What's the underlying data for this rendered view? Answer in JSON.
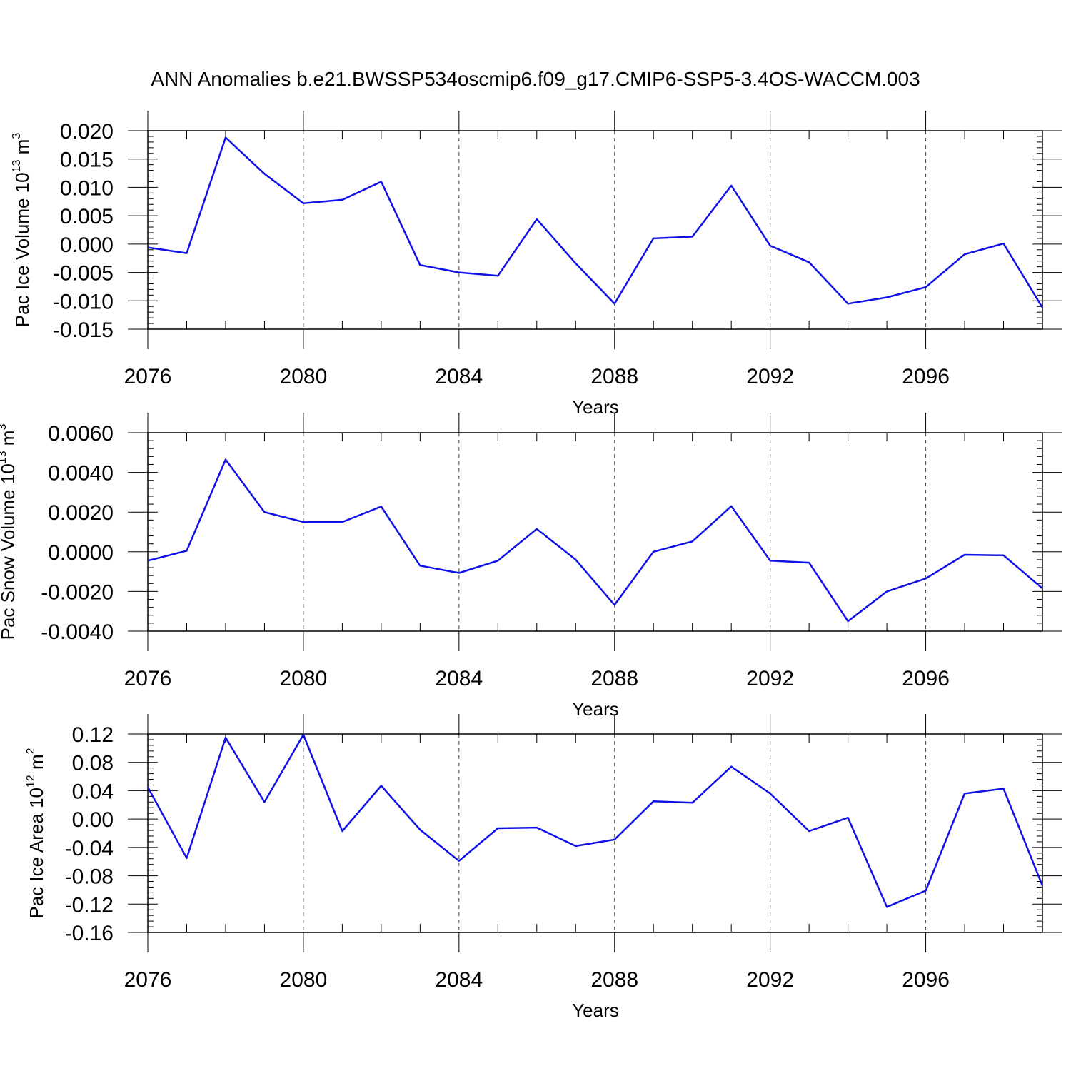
{
  "title": "ANN Anomalies b.e21.BWSSP534oscmip6.f09_g17.CMIP6-SSP5-3.4OS-WACCM.003",
  "chart_data": [
    {
      "type": "line",
      "ylabel": {
        "main": "Pac Ice Volume 10",
        "exp": "13",
        "unit": " m",
        "unit_exp": "3"
      },
      "xlabel": "Years",
      "xlim": [
        2076,
        2099
      ],
      "ylim": [
        -0.015,
        0.02
      ],
      "yticks": [
        -0.015,
        -0.01,
        -0.005,
        0.0,
        0.005,
        0.01,
        0.015,
        0.02
      ],
      "ytick_labels": [
        "-0.015",
        "-0.010",
        "-0.005",
        "0.000",
        "0.005",
        "0.010",
        "0.015",
        "0.020"
      ],
      "xticks": [
        2076,
        2080,
        2084,
        2088,
        2092,
        2096
      ],
      "xtick_labels": [
        "2076",
        "2080",
        "2084",
        "2088",
        "2092",
        "2096"
      ],
      "grid": "dashed vertical at major x ticks",
      "line_color": "#1010e8",
      "x": [
        2076,
        2077,
        2078,
        2079,
        2080,
        2081,
        2082,
        2083,
        2084,
        2085,
        2086,
        2087,
        2088,
        2089,
        2090,
        2091,
        2092,
        2093,
        2094,
        2095,
        2096,
        2097,
        2098,
        2099
      ],
      "values": [
        -0.0006,
        -0.0016,
        0.0188,
        0.0124,
        0.0072,
        0.0078,
        0.011,
        -0.0037,
        -0.005,
        -0.0056,
        0.0044,
        -0.0034,
        -0.0105,
        0.001,
        0.0013,
        0.0103,
        -0.0003,
        -0.0032,
        -0.0105,
        -0.0094,
        -0.0076,
        -0.0018,
        0.0001,
        -0.0112
      ]
    },
    {
      "type": "line",
      "ylabel": {
        "main": "Pac Snow Volume 10",
        "exp": "13",
        "unit": " m",
        "unit_exp": "3"
      },
      "xlabel": "Years",
      "xlim": [
        2076,
        2099
      ],
      "ylim": [
        -0.004,
        0.006
      ],
      "yticks": [
        -0.004,
        -0.002,
        0.0,
        0.002,
        0.004,
        0.006
      ],
      "ytick_labels": [
        "-0.0040",
        "-0.0020",
        "0.0000",
        "0.0020",
        "0.0040",
        "0.0060"
      ],
      "xticks": [
        2076,
        2080,
        2084,
        2088,
        2092,
        2096
      ],
      "xtick_labels": [
        "2076",
        "2080",
        "2084",
        "2088",
        "2092",
        "2096"
      ],
      "grid": "dashed vertical at major x ticks",
      "line_color": "#1010e8",
      "x": [
        2076,
        2077,
        2078,
        2079,
        2080,
        2081,
        2082,
        2083,
        2084,
        2085,
        2086,
        2087,
        2088,
        2089,
        2090,
        2091,
        2092,
        2093,
        2094,
        2095,
        2096,
        2097,
        2098,
        2099
      ],
      "values": [
        -0.00045,
        5e-05,
        0.00465,
        0.002,
        0.0015,
        0.0015,
        0.00228,
        -0.0007,
        -0.00107,
        -0.00045,
        0.00115,
        -0.0004,
        -0.00268,
        0.0,
        0.00052,
        0.0023,
        -0.00045,
        -0.00055,
        -0.0035,
        -0.002,
        -0.00135,
        -0.00015,
        -0.00018,
        -0.00185
      ]
    },
    {
      "type": "line",
      "ylabel": {
        "main": "Pac Ice Area 10",
        "exp": "12",
        "unit": " m",
        "unit_exp": "2"
      },
      "xlabel": "Years",
      "xlim": [
        2076,
        2099
      ],
      "ylim": [
        -0.16,
        0.12
      ],
      "yticks": [
        -0.16,
        -0.12,
        -0.08,
        -0.04,
        0.0,
        0.04,
        0.08,
        0.12
      ],
      "ytick_labels": [
        "-0.16",
        "-0.12",
        "-0.08",
        "-0.04",
        "0.00",
        "0.04",
        "0.08",
        "0.12"
      ],
      "xticks": [
        2076,
        2080,
        2084,
        2088,
        2092,
        2096
      ],
      "xtick_labels": [
        "2076",
        "2080",
        "2084",
        "2088",
        "2092",
        "2096"
      ],
      "grid": "dashed vertical at major x ticks",
      "line_color": "#1010e8",
      "x": [
        2076,
        2077,
        2078,
        2079,
        2080,
        2081,
        2082,
        2083,
        2084,
        2085,
        2086,
        2087,
        2088,
        2089,
        2090,
        2091,
        2092,
        2093,
        2094,
        2095,
        2096,
        2097,
        2098,
        2099
      ],
      "values": [
        0.045,
        -0.055,
        0.115,
        0.024,
        0.119,
        -0.017,
        0.047,
        -0.015,
        -0.059,
        -0.013,
        -0.012,
        -0.038,
        -0.029,
        0.025,
        0.023,
        0.074,
        0.036,
        -0.017,
        0.002,
        -0.124,
        -0.101,
        0.036,
        0.043,
        -0.094
      ]
    }
  ]
}
